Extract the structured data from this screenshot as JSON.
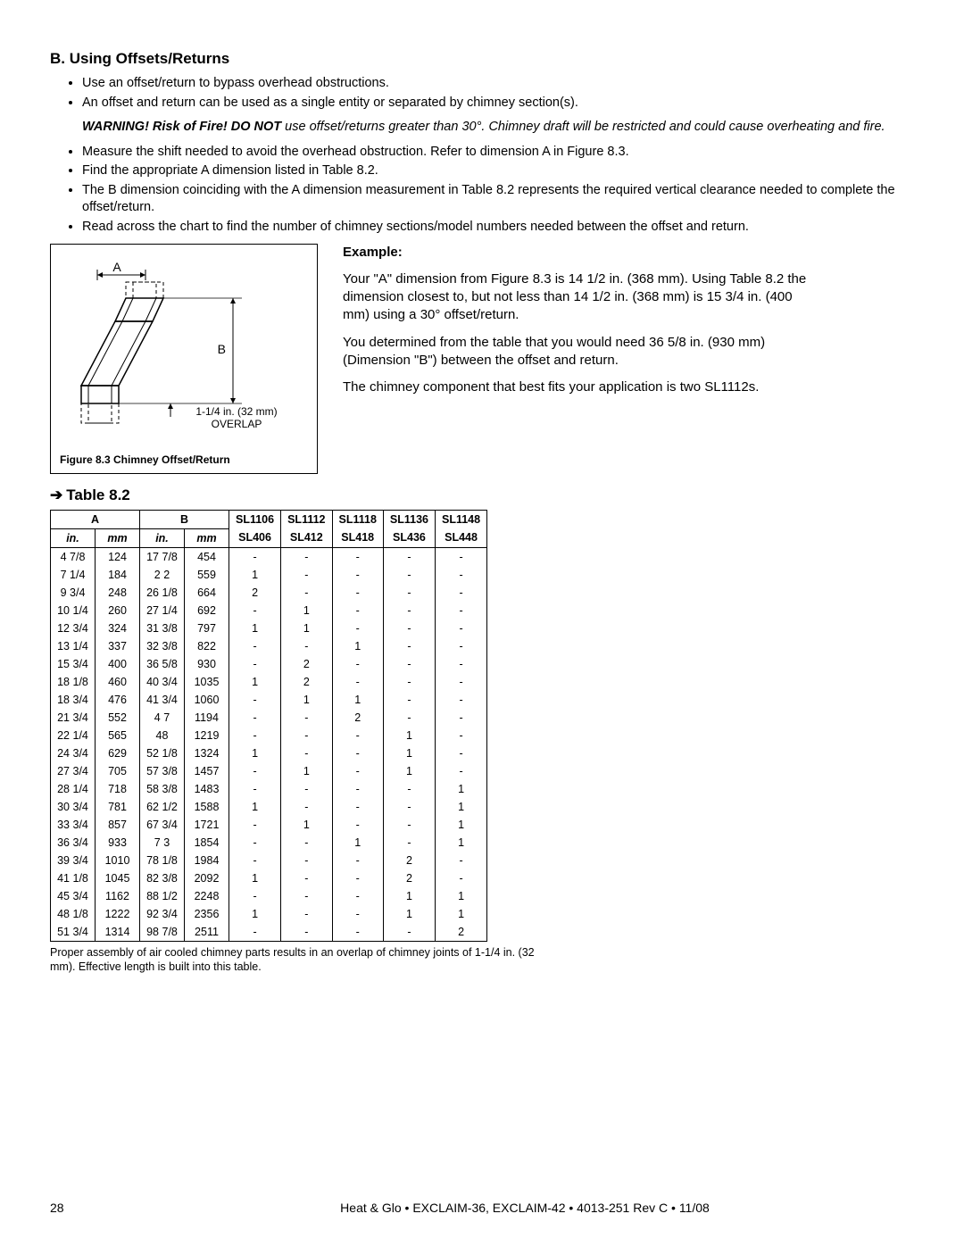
{
  "section": {
    "title": "B. Using Offsets/Returns",
    "bullets_top": [
      "Use an offset/return to bypass overhead obstructions.",
      "An offset and return can be used as a single entity or separated by chimney section(s)."
    ],
    "warning_lead": "WARNING! Risk of Fire! DO NOT",
    "warning_body": " use offset/returns greater than 30°. Chimney draft will be restricted and could cause overheating and fire.",
    "bullets_bottom": [
      "Measure the shift needed to avoid the overhead obstruction. Refer to dimension A in Figure 8.3.",
      "Find the appropriate A dimension listed in Table 8.2.",
      "The B dimension coinciding with the A dimension measurement in Table 8.2 represents the required vertical clearance needed to complete the offset/return.",
      "Read across the chart to find the number of chimney sections/model numbers needed between the offset and return."
    ]
  },
  "figure": {
    "label_A": "A",
    "label_B": "B",
    "overlap_line1": "1-1/4 in. (32 mm)",
    "overlap_line2": "OVERLAP",
    "caption": "Figure 8.3    Chimney Offset/Return"
  },
  "example": {
    "title": "Example:",
    "p1": "Your \"A\" dimension from Figure 8.3 is 14 1/2 in. (368 mm). Using Table 8.2 the dimension closest to, but not less than 14 1/2 in. (368 mm) is 15 3/4 in. (400 mm) using a 30° offset/return.",
    "p2": "You determined from the table that you would need 36 5/8 in. (930 mm) (Dimension \"B\") between the offset and return.",
    "p3": "The chimney component that best fits your application is two SL1112s."
  },
  "table": {
    "heading": "Table 8.2",
    "head_A": "A",
    "head_B": "B",
    "sub_in": "in.",
    "sub_mm": "mm",
    "columns": [
      {
        "top": "SL1106",
        "bottom": "SL406"
      },
      {
        "top": "SL1112",
        "bottom": "SL412"
      },
      {
        "top": "SL1118",
        "bottom": "SL418"
      },
      {
        "top": "SL1136",
        "bottom": "SL436"
      },
      {
        "top": "SL1148",
        "bottom": "SL448"
      }
    ],
    "rows": [
      [
        "4 7/8",
        "124",
        "17 7/8",
        "454",
        "-",
        "-",
        "-",
        "-",
        "-"
      ],
      [
        "7 1/4",
        "184",
        "2 2",
        "559",
        "1",
        "-",
        "-",
        "-",
        "-"
      ],
      [
        "9 3/4",
        "248",
        "26 1/8",
        "664",
        "2",
        "-",
        "-",
        "-",
        "-"
      ],
      [
        "10 1/4",
        "260",
        "27 1/4",
        "692",
        "-",
        "1",
        "-",
        "-",
        "-"
      ],
      [
        "12 3/4",
        "324",
        "31 3/8",
        "797",
        "1",
        "1",
        "-",
        "-",
        "-"
      ],
      [
        "13 1/4",
        "337",
        "32 3/8",
        "822",
        "-",
        "-",
        "1",
        "-",
        "-"
      ],
      [
        "15 3/4",
        "400",
        "36 5/8",
        "930",
        "-",
        "2",
        "-",
        "-",
        "-"
      ],
      [
        "18 1/8",
        "460",
        "40 3/4",
        "1035",
        "1",
        "2",
        "-",
        "-",
        "-"
      ],
      [
        "18 3/4",
        "476",
        "41 3/4",
        "1060",
        "-",
        "1",
        "1",
        "-",
        "-"
      ],
      [
        "21 3/4",
        "552",
        "4 7",
        "1194",
        "-",
        "-",
        "2",
        "-",
        "-"
      ],
      [
        "22 1/4",
        "565",
        "48",
        "1219",
        "-",
        "-",
        "-",
        "1",
        "-"
      ],
      [
        "24 3/4",
        "629",
        "52 1/8",
        "1324",
        "1",
        "-",
        "-",
        "1",
        "-"
      ],
      [
        "27 3/4",
        "705",
        "57 3/8",
        "1457",
        "-",
        "1",
        "-",
        "1",
        "-"
      ],
      [
        "28 1/4",
        "718",
        "58 3/8",
        "1483",
        "-",
        "-",
        "-",
        "-",
        "1"
      ],
      [
        "30 3/4",
        "781",
        "62 1/2",
        "1588",
        "1",
        "-",
        "-",
        "-",
        "1"
      ],
      [
        "33 3/4",
        "857",
        "67 3/4",
        "1721",
        "-",
        "1",
        "-",
        "-",
        "1"
      ],
      [
        "36 3/4",
        "933",
        "7 3",
        "1854",
        "-",
        "-",
        "1",
        "-",
        "1"
      ],
      [
        "39 3/4",
        "1010",
        "78 1/8",
        "1984",
        "-",
        "-",
        "-",
        "2",
        "-"
      ],
      [
        "41 1/8",
        "1045",
        "82 3/8",
        "2092",
        "1",
        "-",
        "-",
        "2",
        "-"
      ],
      [
        "45 3/4",
        "1162",
        "88 1/2",
        "2248",
        "-",
        "-",
        "-",
        "1",
        "1"
      ],
      [
        "48 1/8",
        "1222",
        "92 3/4",
        "2356",
        "1",
        "-",
        "-",
        "1",
        "1"
      ],
      [
        "51 3/4",
        "1314",
        "98 7/8",
        "2511",
        "-",
        "-",
        "-",
        "-",
        "2"
      ]
    ],
    "note": "Proper assembly of air cooled chimney parts results in an overlap of chimney joints of 1-1/4 in. (32 mm). Effective length is built into this table."
  },
  "footer": {
    "page": "28",
    "text": "Heat & Glo • EXCLAIM-36, EXCLAIM-42 • 4013-251 Rev C • 11/08"
  },
  "colors": {
    "text": "#000000",
    "bg": "#ffffff",
    "border": "#000000"
  }
}
